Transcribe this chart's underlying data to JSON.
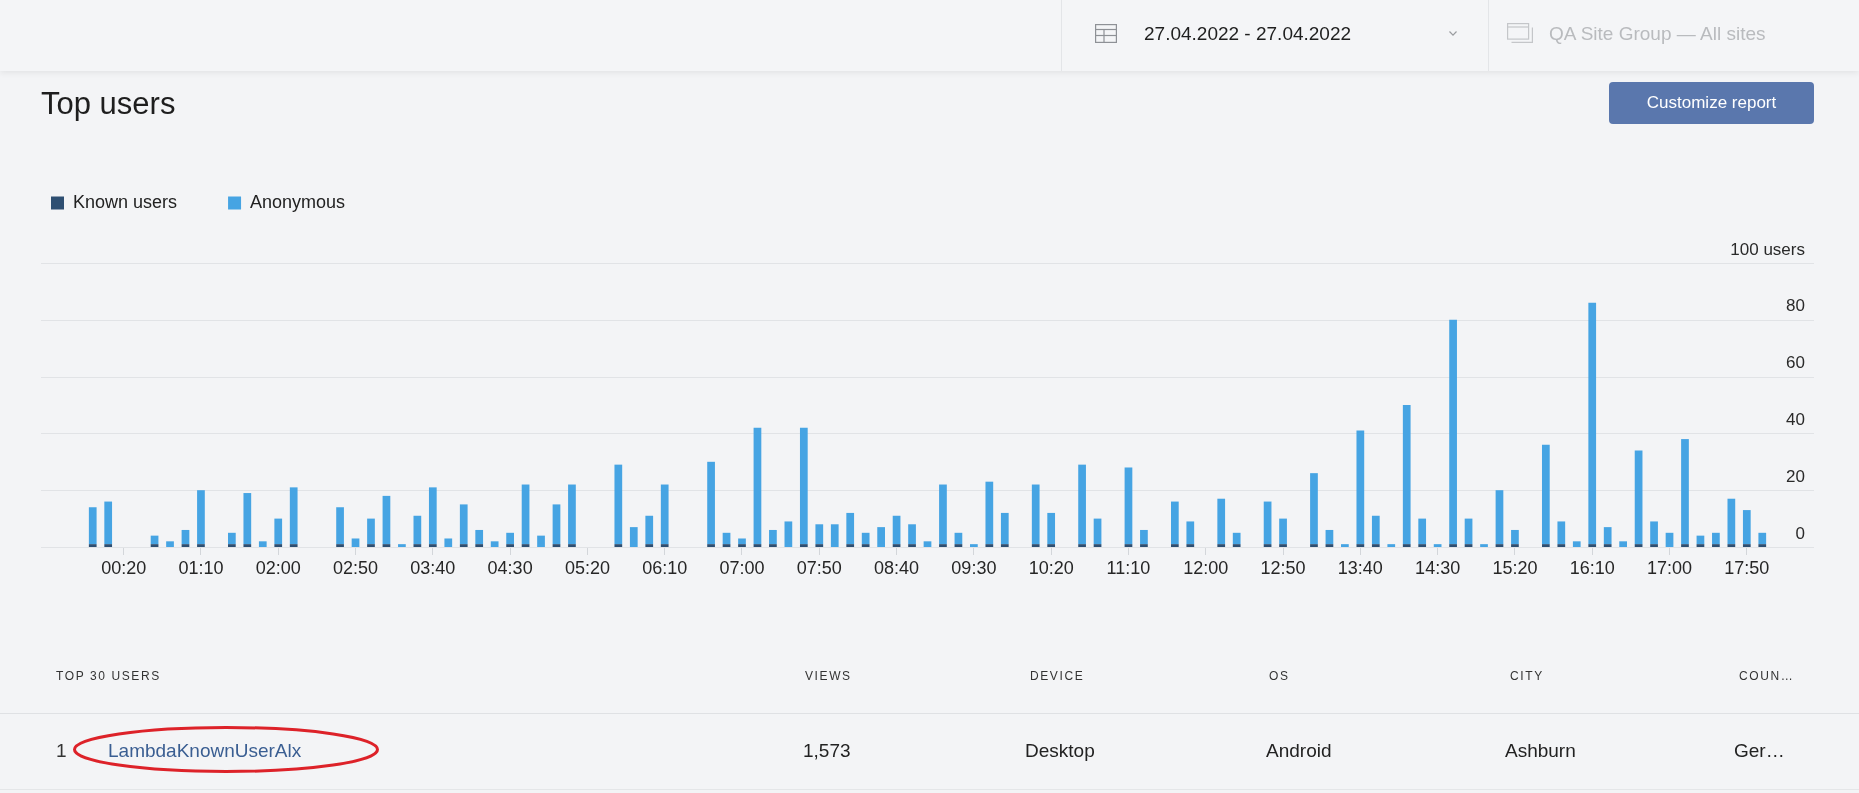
{
  "chart_data": [
    {
      "type": "other",
      "annotations": [
        "27.04.2022 - 27.04.2022",
        "QA Site Group — All sites"
      ]
    },
    {
      "type": "bar",
      "title": "Top users",
      "annotations": [
        "Customize report"
      ],
      "categories": [
        null,
        null,
        "00:20",
        null,
        null,
        null,
        null,
        "01:10",
        null,
        null,
        null,
        null,
        "02:00",
        null,
        null,
        null,
        null,
        "02:50",
        null,
        null,
        null,
        null,
        "03:40",
        null,
        null,
        null,
        null,
        "04:30",
        null,
        null,
        null,
        null,
        "05:20",
        null,
        null,
        null,
        null,
        "06:10",
        null,
        null,
        null,
        null,
        "07:00",
        null,
        null,
        null,
        null,
        "07:50",
        null,
        null,
        null,
        null,
        "08:40",
        null,
        null,
        null,
        null,
        "09:30",
        null,
        null,
        null,
        null,
        "10:20",
        null,
        null,
        null,
        null,
        "11:10",
        null,
        null,
        null,
        null,
        "12:00",
        null,
        null,
        null,
        null,
        "12:50",
        null,
        null,
        null,
        null,
        "13:40",
        null,
        null,
        null,
        null,
        "14:30",
        null,
        null,
        null,
        null,
        "15:20",
        null,
        null,
        null,
        null,
        "16:10",
        null,
        null,
        null,
        null,
        "17:00",
        null,
        null,
        null,
        null,
        "17:50",
        null
      ],
      "series": [
        {
          "name": "Known users",
          "color": "#2e4f72",
          "values": [
            1,
            1,
            null,
            null,
            1,
            null,
            1,
            1,
            null,
            1,
            1,
            null,
            1,
            1,
            null,
            null,
            1,
            null,
            1,
            1,
            null,
            1,
            1,
            null,
            1,
            1,
            null,
            1,
            1,
            null,
            1,
            1,
            null,
            null,
            1,
            null,
            1,
            1,
            null,
            null,
            1,
            1,
            1,
            1,
            1,
            null,
            1,
            1,
            null,
            1,
            1,
            null,
            1,
            1,
            null,
            1,
            1,
            null,
            1,
            1,
            null,
            1,
            1,
            null,
            1,
            1,
            null,
            1,
            1,
            null,
            1,
            1,
            null,
            1,
            1,
            null,
            1,
            1,
            null,
            1,
            1,
            null,
            1,
            1,
            null,
            1,
            1,
            null,
            1,
            1,
            null,
            1,
            1,
            null,
            1,
            1,
            null,
            1,
            1,
            null,
            1,
            1,
            null,
            1,
            1,
            1,
            1,
            1,
            1
          ]
        },
        {
          "name": "Anonymous",
          "color": "#46a4e3",
          "values": [
            13,
            15,
            null,
            null,
            3,
            2,
            5,
            19,
            null,
            4,
            18,
            2,
            9,
            20,
            null,
            null,
            13,
            3,
            9,
            17,
            1,
            10,
            20,
            3,
            14,
            5,
            2,
            4,
            21,
            4,
            14,
            21,
            null,
            null,
            28,
            7,
            10,
            21,
            null,
            null,
            29,
            4,
            2,
            41,
            5,
            9,
            41,
            7,
            8,
            11,
            4,
            7,
            10,
            7,
            2,
            21,
            4,
            1,
            22,
            11,
            null,
            21,
            11,
            null,
            28,
            9,
            null,
            27,
            5,
            null,
            15,
            8,
            null,
            16,
            4,
            null,
            15,
            9,
            null,
            25,
            5,
            1,
            40,
            10,
            1,
            49,
            9,
            1,
            79,
            9,
            1,
            19,
            5,
            null,
            35,
            8,
            2,
            85,
            6,
            2,
            33,
            8,
            5,
            37,
            3,
            4,
            16,
            12,
            4
          ]
        }
      ],
      "stacked": true,
      "ylim": [
        0,
        100
      ],
      "yticks": [
        0,
        20,
        40,
        60,
        80,
        {
          "value": 100,
          "label": "100 users"
        }
      ],
      "grid": "y",
      "legend": "top left"
    },
    {
      "type": "other",
      "categories": [
        "TOP 30 USERS",
        "VIEWS",
        "DEVICE",
        "OS",
        "CITY",
        "COUN…"
      ],
      "annotations": [
        "1",
        "LambdaKnownUserAlx",
        "1,573",
        "Desktop",
        "Android",
        "Ashburn",
        "Ger…"
      ]
    }
  ]
}
